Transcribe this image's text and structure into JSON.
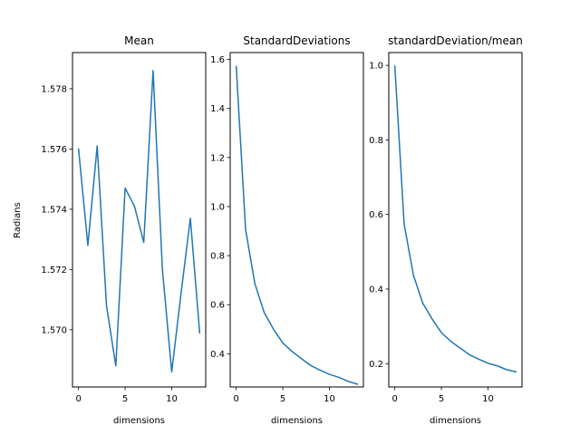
{
  "colors": {
    "series": "#1f77b4",
    "background": "#ffffff",
    "axes": "#000000"
  },
  "chart_data": [
    {
      "type": "line",
      "title": "Mean",
      "xlabel": "dimensions",
      "ylabel": "Radians",
      "xlim": [
        -0.65,
        13.65
      ],
      "ylim": [
        1.5681,
        1.5792
      ],
      "xticks": [
        0,
        5,
        10
      ],
      "yticks": [
        1.57,
        1.572,
        1.574,
        1.576,
        1.578
      ],
      "ytick_labels": [
        "1.570",
        "1.572",
        "1.574",
        "1.576",
        "1.578"
      ],
      "x": [
        0,
        1,
        2,
        3,
        4,
        5,
        6,
        7,
        8,
        9,
        10,
        11,
        12,
        13
      ],
      "series": [
        {
          "values": [
            1.576,
            1.5728,
            1.5761,
            1.5708,
            1.5688,
            1.5747,
            1.5741,
            1.5729,
            1.5786,
            1.572,
            1.5686,
            1.5712,
            1.5737,
            1.5699
          ]
        }
      ]
    },
    {
      "type": "line",
      "title": "StandardDeviations",
      "xlabel": "dimensions",
      "ylabel": "",
      "xlim": [
        -0.65,
        13.65
      ],
      "ylim": [
        0.2646,
        1.6279
      ],
      "xticks": [
        0,
        5,
        10
      ],
      "yticks": [
        0.4,
        0.6,
        0.8,
        1.0,
        1.2,
        1.4,
        1.6
      ],
      "ytick_labels": [
        "0.4",
        "0.6",
        "0.8",
        "1.0",
        "1.2",
        "1.4",
        "1.6"
      ],
      "x": [
        0,
        1,
        2,
        3,
        4,
        5,
        6,
        7,
        8,
        9,
        10,
        11,
        12,
        13
      ],
      "series": [
        {
          "values": [
            1.571,
            0.907,
            0.686,
            0.568,
            0.5,
            0.444,
            0.409,
            0.38,
            0.352,
            0.333,
            0.316,
            0.304,
            0.288,
            0.276
          ]
        }
      ]
    },
    {
      "type": "line",
      "title": "standardDeviation/mean",
      "xlabel": "dimensions",
      "ylabel": "",
      "xlim": [
        -0.65,
        13.65
      ],
      "ylim": [
        0.1375,
        1.0343
      ],
      "xticks": [
        0,
        5,
        10
      ],
      "yticks": [
        0.2,
        0.4,
        0.6,
        0.8,
        1.0
      ],
      "ytick_labels": [
        "0.2",
        "0.4",
        "0.6",
        "0.8",
        "1.0"
      ],
      "x": [
        0,
        1,
        2,
        3,
        4,
        5,
        6,
        7,
        8,
        9,
        10,
        11,
        12,
        13
      ],
      "series": [
        {
          "values": [
            0.998,
            0.574,
            0.437,
            0.362,
            0.32,
            0.283,
            0.26,
            0.242,
            0.224,
            0.212,
            0.201,
            0.194,
            0.184,
            0.178
          ]
        }
      ]
    }
  ]
}
